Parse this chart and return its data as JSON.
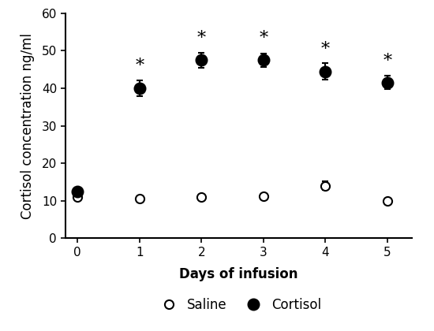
{
  "x": [
    0,
    1,
    2,
    3,
    4,
    5
  ],
  "saline_y": [
    11,
    10.5,
    11,
    11.2,
    14,
    10
  ],
  "saline_err": [
    0.4,
    0.4,
    0.4,
    0.5,
    1.2,
    0.4
  ],
  "cortisol_y": [
    12.5,
    40,
    47.5,
    47.5,
    44.5,
    41.5
  ],
  "cortisol_err": [
    1.0,
    2.0,
    2.0,
    1.8,
    2.2,
    1.8
  ],
  "significant_cortisol_x": [
    1,
    2,
    3,
    4,
    5
  ],
  "star_y": [
    43.5,
    51.0,
    51.0,
    48.0,
    44.8
  ],
  "ylabel": "Cortisol concentration ng/ml",
  "xlabel": "Days of infusion",
  "ylim": [
    0,
    60
  ],
  "yticks": [
    0,
    10,
    20,
    30,
    40,
    50,
    60
  ],
  "xticks": [
    0,
    1,
    2,
    3,
    4,
    5
  ],
  "legend_labels": [
    "Saline",
    "Cortisol"
  ],
  "background_color": "#ffffff",
  "line_color": "#000000",
  "marker_size_open": 8,
  "marker_size_filled": 10,
  "linewidth": 2.0,
  "capsize": 3,
  "star_fontsize": 16,
  "axis_label_fontsize": 12,
  "tick_fontsize": 11,
  "legend_fontsize": 12
}
